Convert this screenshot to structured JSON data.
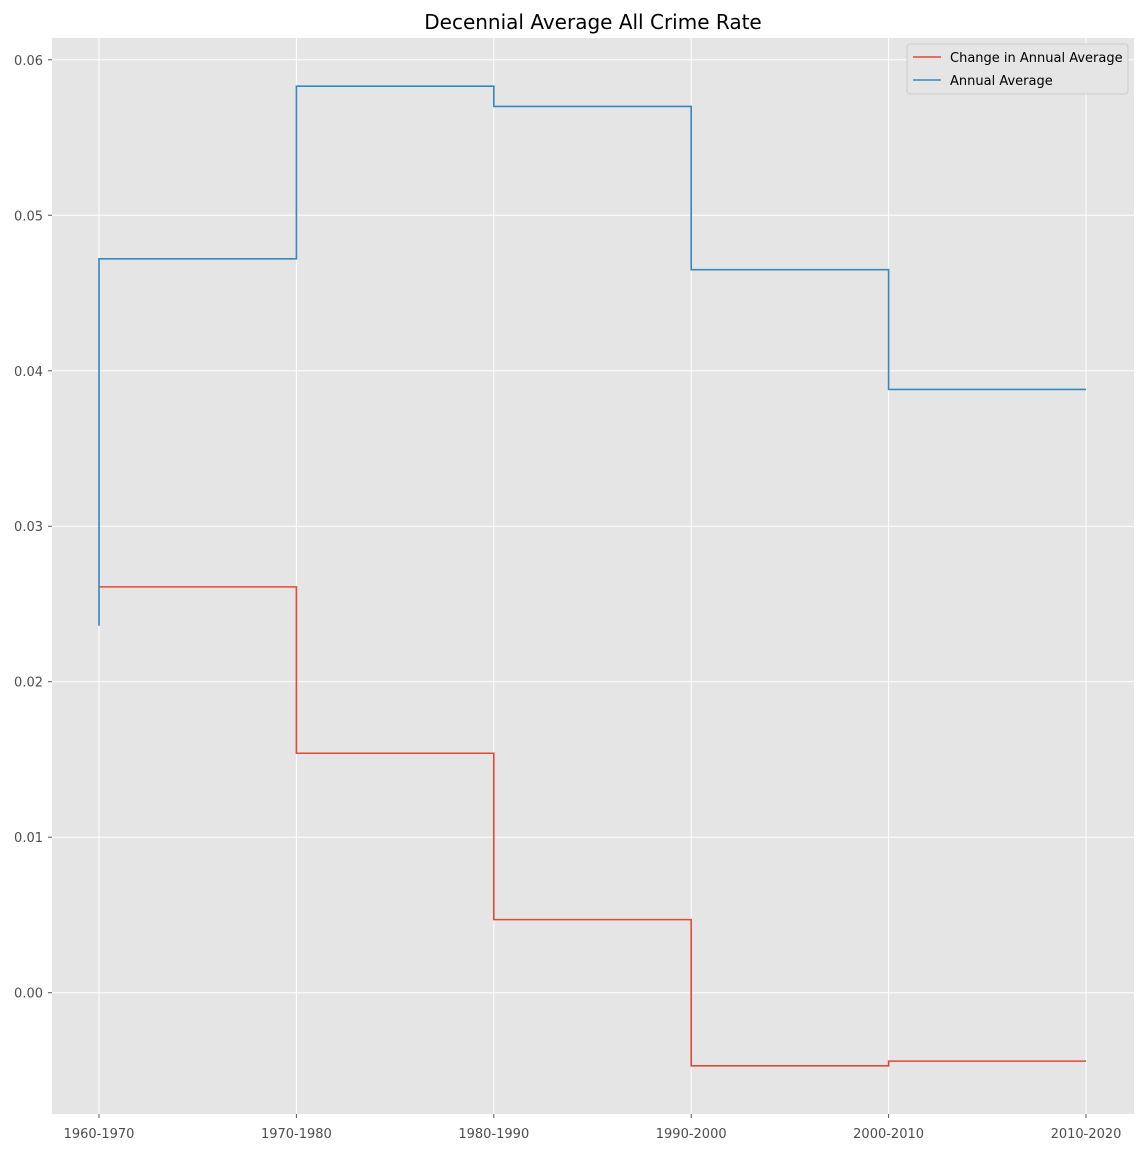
{
  "chart_data": {
    "type": "line",
    "style": "step",
    "title": "Decennial Average All Crime Rate",
    "xlabel": "",
    "ylabel": "",
    "categories": [
      "1960-1970",
      "1970-1980",
      "1980-1990",
      "1990-2000",
      "2000-2010",
      "2010-2020"
    ],
    "ylim": [
      -0.0078,
      0.0614
    ],
    "yticks": [
      0.0,
      0.01,
      0.02,
      0.03,
      0.04,
      0.05,
      0.06
    ],
    "ytick_labels": [
      "0.00",
      "0.01",
      "0.02",
      "0.03",
      "0.04",
      "0.05",
      "0.06"
    ],
    "grid": true,
    "legend_position": "top-right",
    "series": [
      {
        "name": "Change in Annual Average",
        "color": "#e24a33",
        "values": [
          0.0261,
          0.0154,
          0.0047,
          -0.0047,
          -0.0044,
          -0.0044
        ]
      },
      {
        "name": "Annual Average",
        "color": "#348abd",
        "start_value": 0.0236,
        "values": [
          0.0472,
          0.0583,
          0.057,
          0.0465,
          0.0388,
          0.0388
        ]
      }
    ]
  }
}
